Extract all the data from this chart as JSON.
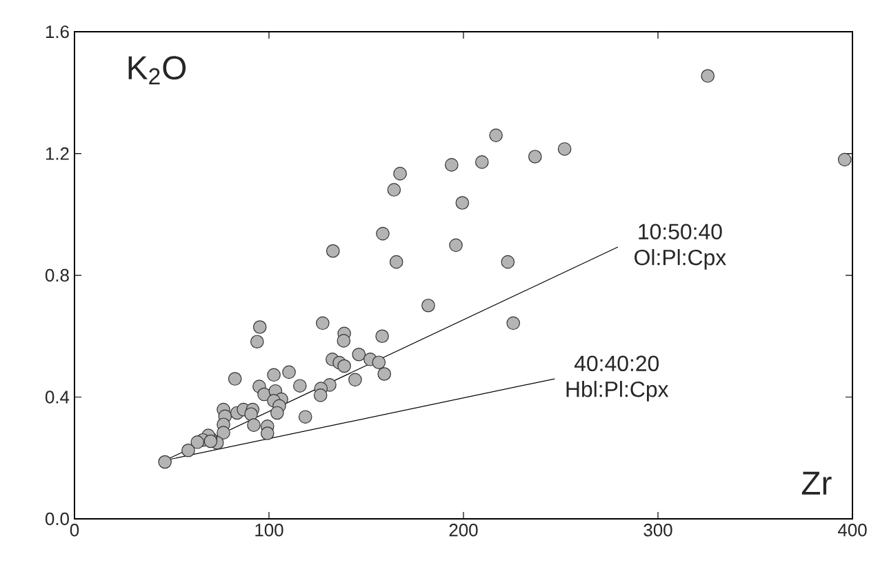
{
  "chart_data": {
    "type": "scatter",
    "xlabel": "Zr",
    "ylabel": "K$_{2}$O",
    "xlim": [
      0,
      400
    ],
    "ylim": [
      0,
      1.6
    ],
    "xticks": [
      0,
      100,
      200,
      300,
      400
    ],
    "yticks": [
      {
        "value": 0,
        "label": "0.0"
      },
      {
        "value": 0.4,
        "label": "0.4"
      },
      {
        "value": 0.8,
        "label": "0.8"
      },
      {
        "value": 1.2,
        "label": "1.2"
      },
      {
        "value": 1.6,
        "label": "1.6"
      }
    ],
    "grid": false,
    "series": [
      {
        "marker": "circle",
        "color": "#b4b4b4",
        "x": [
          325.6,
          396,
          216.7,
          252,
          236.8,
          193.9,
          209.5,
          167.4,
          164.3,
          199.4,
          158.5,
          196.1,
          132.9,
          165.5,
          222.8,
          181.9,
          225.6,
          127.6,
          95.3,
          93.9,
          138.7,
          138.4,
          158.2,
          146.2,
          152.1,
          132.6,
          136.2,
          138.7,
          156.5,
          159.3,
          110.3,
          102.5,
          144.3,
          82.5,
          115.9,
          131.2,
          126.7,
          126.5,
          95.0,
          97.5,
          103.3,
          106.4,
          102.5,
          105.3,
          104.2,
          118.7,
          76.6,
          77.4,
          83.6,
          86.9,
          91.6,
          90.8,
          92.2,
          99.2,
          99.2,
          76.6,
          76.6,
          73.3,
          70.0,
          68.8,
          66.0,
          63.2,
          58.5,
          46.5,
          70.0
        ],
        "values": [
          1.455,
          1.18,
          1.26,
          1.215,
          1.19,
          1.163,
          1.172,
          1.134,
          1.081,
          1.038,
          0.937,
          0.899,
          0.88,
          0.844,
          0.844,
          0.701,
          0.643,
          0.643,
          0.63,
          0.582,
          0.609,
          0.585,
          0.6,
          0.54,
          0.524,
          0.524,
          0.513,
          0.502,
          0.514,
          0.476,
          0.482,
          0.473,
          0.457,
          0.46,
          0.437,
          0.44,
          0.428,
          0.406,
          0.435,
          0.409,
          0.42,
          0.393,
          0.388,
          0.371,
          0.348,
          0.335,
          0.359,
          0.337,
          0.348,
          0.359,
          0.359,
          0.344,
          0.308,
          0.304,
          0.281,
          0.31,
          0.283,
          0.25,
          0.264,
          0.274,
          0.259,
          0.252,
          0.225,
          0.187,
          0.255
        ]
      },
      {
        "type": "line",
        "marker": "none",
        "color": "#000000",
        "x": [
          46.5,
          279.4
        ],
        "values": [
          0.192,
          0.893
        ]
      },
      {
        "type": "line",
        "marker": "none",
        "color": "#000000",
        "x": [
          46.5,
          246.9
        ],
        "values": [
          0.192,
          0.46
        ]
      }
    ],
    "annotations": [
      "10:50:40",
      "Ol:Pl:Cpx",
      "40:40:20",
      "Hbl:Pl:Cpx"
    ]
  }
}
